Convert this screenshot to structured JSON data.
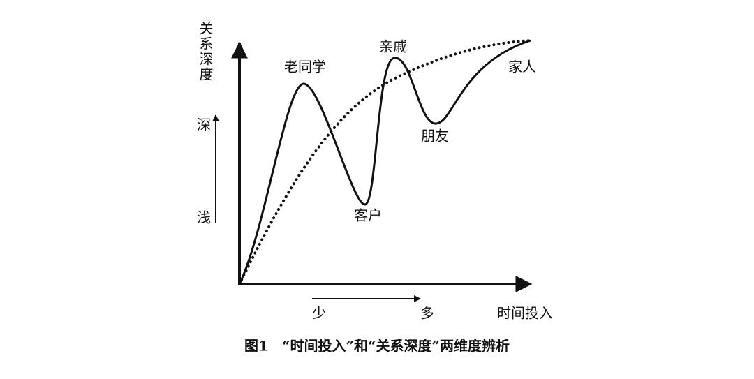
{
  "axes": {
    "y_label": "关系深度",
    "y_high": "深",
    "y_low": "浅",
    "x_label": "时间投入",
    "x_low": "少",
    "x_high": "多"
  },
  "curve_labels": [
    "老同学",
    "客户",
    "亲戚",
    "朋友",
    "家人"
  ],
  "caption": "图1　“时间投入”和“关系深度”两维度辨析"
}
